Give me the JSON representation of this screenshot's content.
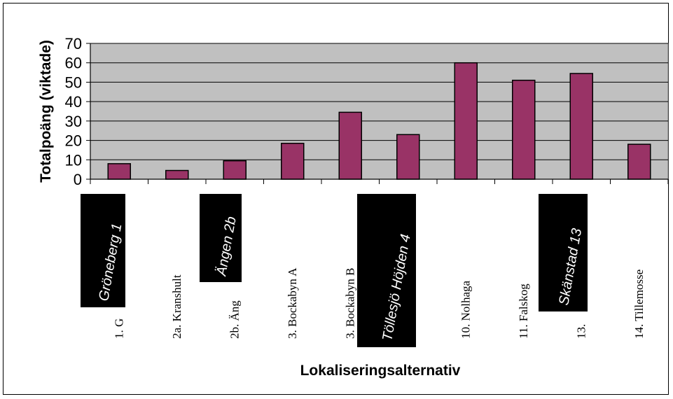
{
  "chart_data": {
    "type": "bar",
    "xlabel": "Lokaliseringsalternativ",
    "ylabel": "Totalpoäng (viktade)",
    "ylim": [
      0,
      70
    ],
    "yticks": [
      0,
      10,
      20,
      30,
      40,
      50,
      60,
      70
    ],
    "grid": true,
    "categories": [
      "1. Gröneberg 1",
      "2a. Kranshult",
      "2b. Ängen 2b",
      "3. Bockabyn A",
      "3. Bockabyn B",
      "4. Töllesjö Höjden 4",
      "10.  Nolhaga",
      "11.  Falskog",
      "13. Skänstad 13",
      "14. Tillemosse"
    ],
    "values": [
      8,
      4.5,
      9.5,
      18.5,
      34.5,
      23,
      60,
      51,
      54.5,
      18
    ],
    "colors": {
      "bar": "#993366",
      "plot_bg": "#c0c0c0",
      "overlay_bg": "#000000",
      "overlay_text": "#ffffff"
    },
    "visible_category_labels": [
      "1. G",
      "2a. Kranshult",
      "2b. Äng",
      "3. Bockabyn A",
      "3. Bockabyn B",
      "",
      "10.  Nolhaga",
      "11.  Falskog",
      "13.",
      "14. Tillemosse"
    ],
    "overlay_labels": [
      {
        "text": "Gröneberg 1",
        "category_index": 0
      },
      {
        "text": "Ängen 2b",
        "category_index": 2
      },
      {
        "text": "Töllesjö Höjden 4",
        "category_index": 5
      },
      {
        "text": "Skänstad 13",
        "category_index": 8
      }
    ]
  }
}
